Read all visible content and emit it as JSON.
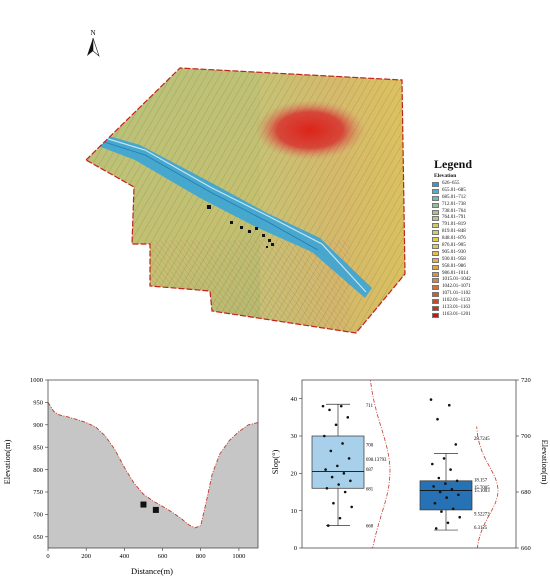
{
  "map": {
    "north_label": "N",
    "legend_title": "Legend",
    "legend_subtitle": "Elevation",
    "legend_items": [
      {
        "label": "626–655",
        "color": "#2e9be0"
      },
      {
        "label": "655.01–685",
        "color": "#58aacf"
      },
      {
        "label": "685.01–712",
        "color": "#79b4b8"
      },
      {
        "label": "712.01–738",
        "color": "#93bca4"
      },
      {
        "label": "738.01–764",
        "color": "#a9c290"
      },
      {
        "label": "764.01–791",
        "color": "#bcc67e"
      },
      {
        "label": "791.01–819",
        "color": "#cccb6a"
      },
      {
        "label": "819.01–848",
        "color": "#d9cd5a"
      },
      {
        "label": "848.01–876",
        "color": "#e3cc4e"
      },
      {
        "label": "876.01–905",
        "color": "#e8c544"
      },
      {
        "label": "905.01–930",
        "color": "#ebbc3e"
      },
      {
        "label": "930.01–958",
        "color": "#ebb03a"
      },
      {
        "label": "958.01–986",
        "color": "#e9a236"
      },
      {
        "label": "986.01–1014",
        "color": "#e59332"
      },
      {
        "label": "1015.01–1042",
        "color": "#e0822e"
      },
      {
        "label": "1042.01–1071",
        "color": "#da702a"
      },
      {
        "label": "1071.01–1102",
        "color": "#d35d26"
      },
      {
        "label": "1102.01–1133",
        "color": "#cb4822"
      },
      {
        "label": "1133.01–1163",
        "color": "#c3331e"
      },
      {
        "label": "1163.01–1201",
        "color": "#b91c1a"
      }
    ]
  },
  "chart_data": [
    {
      "type": "area",
      "xlabel": "Distance(m)",
      "ylabel": "Elevation(m)",
      "xlim": [
        0,
        1100
      ],
      "ylim": [
        625,
        1000
      ],
      "x_ticks": [
        0,
        200,
        400,
        600,
        800,
        1000
      ],
      "y_ticks": [
        650,
        700,
        750,
        800,
        850,
        900,
        950,
        1000
      ],
      "x": [
        0,
        30,
        60,
        100,
        150,
        200,
        250,
        300,
        350,
        400,
        450,
        500,
        550,
        600,
        650,
        700,
        740,
        770,
        800,
        830,
        860,
        900,
        950,
        1000,
        1050,
        1100
      ],
      "y": [
        950,
        930,
        922,
        918,
        912,
        905,
        895,
        875,
        845,
        805,
        770,
        745,
        730,
        718,
        705,
        690,
        676,
        670,
        675,
        730,
        790,
        835,
        865,
        885,
        900,
        905
      ],
      "markers": [
        {
          "x": 500,
          "y": 722
        },
        {
          "x": 565,
          "y": 710
        }
      ]
    },
    {
      "type": "box",
      "ylabel_left": "Slop(°)",
      "ylabel_right": "Elevation(m)",
      "left_ylim": [
        0,
        45
      ],
      "left_ticks": [
        0,
        10,
        20,
        30,
        40
      ],
      "right_ylim": [
        660,
        720
      ],
      "right_ticks": [
        660,
        680,
        700,
        720
      ],
      "boxes": [
        {
          "name": "Slope",
          "axis": "left",
          "color": "#a9d0ea",
          "min": 6,
          "q1": 16,
          "median": 20.5,
          "q3": 30,
          "max": 38.5,
          "points": [
            38,
            38,
            37,
            35,
            33,
            30,
            28,
            26,
            24,
            22,
            21,
            20,
            19,
            18,
            17,
            16,
            15,
            12,
            11,
            8,
            6
          ]
        },
        {
          "name": "Elevation",
          "axis": "right",
          "color": "#2672b5",
          "min": 666.4,
          "q1": 673.6,
          "median": 680.5,
          "q3": 684.0,
          "max": 693.8,
          "points": [
            713,
            711,
            706,
            697,
            692,
            690,
            688,
            685,
            684,
            683,
            682,
            681,
            680,
            679,
            678,
            676,
            674,
            673,
            671,
            669,
            667
          ]
        }
      ],
      "annotations": [
        {
          "text": "711",
          "axis": "right",
          "y": 711
        },
        {
          "text": "700",
          "axis": "right",
          "y": 697
        },
        {
          "text": "690.13793",
          "axis": "right",
          "y": 691.8
        },
        {
          "text": "687",
          "axis": "right",
          "y": 688.3
        },
        {
          "text": "681",
          "axis": "right",
          "y": 681.3
        },
        {
          "text": "668",
          "axis": "right",
          "y": 668
        },
        {
          "text": "28.7245",
          "axis": "left",
          "y": 29.5
        },
        {
          "text": "18.157",
          "axis": "left",
          "y": 18.4
        },
        {
          "text": "15.7005",
          "axis": "left",
          "y": 16.4
        },
        {
          "text": "15.1003",
          "axis": "left",
          "y": 15.6
        },
        {
          "text": "9.52273",
          "axis": "left",
          "y": 9.3
        },
        {
          "text": "6.3125",
          "axis": "left",
          "y": 5.6
        }
      ]
    }
  ]
}
